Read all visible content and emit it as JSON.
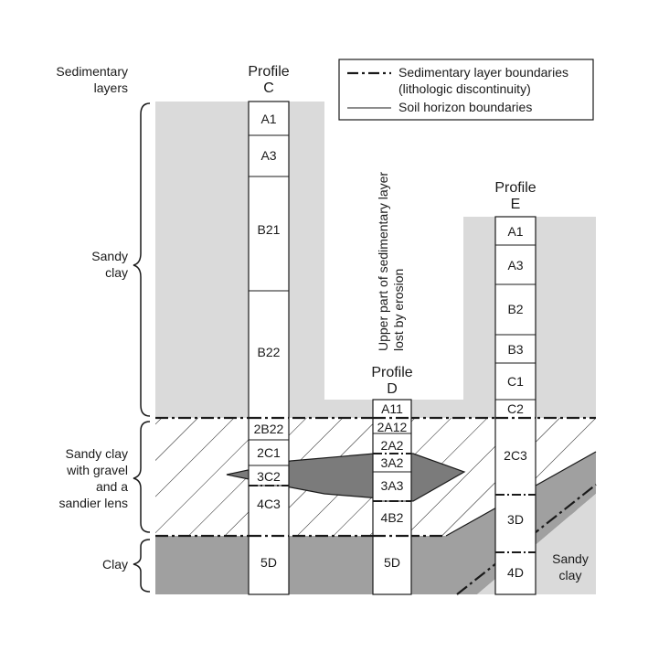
{
  "header": {
    "sedimentary_layers_label_1": "Sedimentary",
    "sedimentary_layers_label_2": "layers"
  },
  "legend": {
    "item1_line1": "Sedimentary layer boundaries",
    "item1_line2": "(lithologic discontinuity)",
    "item2": "Soil horizon boundaries"
  },
  "layers": {
    "sandy_clay_1": "Sandy",
    "sandy_clay_2": "clay",
    "gravel_1": "Sandy clay",
    "gravel_2": "with gravel",
    "gravel_3": "and a",
    "gravel_4": "sandier lens",
    "clay": "Clay",
    "lower_right_1": "Sandy",
    "lower_right_2": "clay"
  },
  "profiles": {
    "c": {
      "title_1": "Profile",
      "title_2": "C",
      "horizons": [
        "A1",
        "A3",
        "B21",
        "B22",
        "2B22",
        "2C1",
        "3C2",
        "4C3",
        "5D"
      ]
    },
    "d": {
      "title_1": "Profile",
      "title_2": "D",
      "horizons": [
        "A11",
        "2A12",
        "2A2",
        "3A2",
        "3A3",
        "4B2",
        "5D"
      ]
    },
    "e": {
      "title_1": "Profile",
      "title_2": "E",
      "horizons": [
        "A1",
        "A3",
        "B2",
        "B3",
        "C1",
        "C2",
        "2C3",
        "3D",
        "4D"
      ]
    }
  },
  "annotation": {
    "erosion_1": "Upper part of sedimentary layer",
    "erosion_2": "lost by erosion"
  },
  "colors": {
    "light_gray": "#dadada",
    "dark_gray": "#a0a0a0",
    "lens_gray": "#7b7b7b",
    "line": "#1a1a1a"
  }
}
